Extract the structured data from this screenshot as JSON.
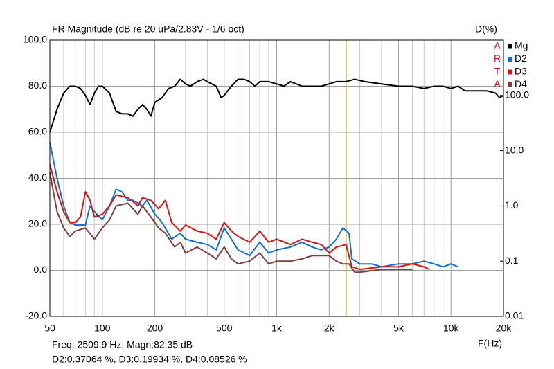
{
  "chart_data": {
    "type": "line",
    "title": "FR Magnitude (dB re 20 uPa/2.83V - 1/6 oct)",
    "y2_label": "D(%)",
    "x_label": "F(Hz)",
    "brand": [
      "A",
      "R",
      "T",
      "A"
    ],
    "brand_color": "#d01010",
    "annotations": [
      "Freq: 2509.9 Hz, Magn:82.35 dB",
      "D2:0.37064 %, D3:0.19934 %, D4:0.08526 %"
    ],
    "x_log": true,
    "y2_log": true,
    "xlim": [
      50,
      20000
    ],
    "xticks": [
      50,
      100,
      200,
      500,
      {
        "value": 1000,
        "label": "1k"
      },
      {
        "value": 2000,
        "label": "2k"
      },
      {
        "value": 5000,
        "label": "5k"
      },
      {
        "value": 10000,
        "label": "10k"
      },
      {
        "value": 20000,
        "label": "20k"
      }
    ],
    "x_minor_grid": [
      60,
      70,
      80,
      90,
      300,
      400,
      600,
      700,
      800,
      900,
      3000,
      4000,
      6000,
      7000,
      8000,
      9000
    ],
    "ylim": [
      -20,
      100
    ],
    "yticks": [
      {
        "value": -20,
        "label": "-20.0"
      },
      {
        "value": 0,
        "label": "0.0"
      },
      {
        "value": 20,
        "label": "20.0"
      },
      {
        "value": 40,
        "label": "40.0"
      },
      {
        "value": 60,
        "label": "60.0"
      },
      {
        "value": 80,
        "label": "80.0"
      },
      {
        "value": 100,
        "label": "100.0"
      }
    ],
    "y2lim": [
      0.01,
      1000
    ],
    "y2ticks": [
      0.01,
      0.1,
      {
        "value": 1,
        "label": "1.0"
      },
      {
        "value": 10,
        "label": "10.0"
      },
      {
        "value": 100,
        "label": "100.0"
      }
    ],
    "grid": true,
    "legend": "top-right",
    "cursor": {
      "x": 2509.9,
      "color": "#d4c000"
    },
    "series": [
      {
        "name": "Mg",
        "color": "#000000",
        "axis": "y",
        "x": [
          50,
          55,
          60,
          65,
          70,
          75,
          80,
          85,
          90,
          95,
          100,
          110,
          120,
          130,
          140,
          150,
          160,
          170,
          180,
          190,
          200,
          220,
          240,
          260,
          280,
          300,
          320,
          350,
          380,
          400,
          450,
          480,
          500,
          550,
          600,
          650,
          700,
          750,
          800,
          900,
          1000,
          1100,
          1200,
          1400,
          1600,
          1800,
          2000,
          2200,
          2500,
          2800,
          3200,
          4000,
          5000,
          6000,
          7000,
          8000,
          9000,
          10000,
          11000,
          12000,
          14000,
          16000,
          18000,
          19000,
          20000
        ],
        "values": [
          60,
          70,
          77,
          80,
          80,
          79,
          76,
          72,
          77,
          80,
          80,
          77,
          69,
          68,
          68,
          67,
          70,
          72,
          70,
          67,
          73,
          75,
          79,
          80,
          83,
          81,
          80,
          82,
          83,
          82,
          80,
          75,
          76,
          80,
          83,
          83,
          82,
          80,
          82,
          82,
          81,
          80,
          82,
          80,
          80,
          80,
          81,
          82,
          82,
          83,
          82,
          81,
          80,
          80,
          79,
          80,
          80,
          79,
          80,
          78,
          78,
          78,
          77,
          75,
          76
        ]
      },
      {
        "name": "D2",
        "color": "#1070d0",
        "axis": "y2",
        "x": [
          50,
          55,
          60,
          65,
          70,
          80,
          85,
          90,
          100,
          110,
          120,
          130,
          140,
          150,
          170,
          180,
          200,
          220,
          250,
          280,
          300,
          350,
          400,
          450,
          500,
          550,
          600,
          700,
          800,
          900,
          1000,
          1200,
          1400,
          1600,
          1800,
          2000,
          2200,
          2400,
          2600,
          2700,
          3000,
          3500,
          4000,
          5000,
          6000,
          7000,
          8000,
          9000,
          10000,
          11000
        ],
        "values": [
          14.1,
          3.16,
          1.0,
          0.5,
          0.45,
          0.45,
          1.0,
          0.79,
          0.56,
          1.0,
          2.0,
          1.78,
          1.26,
          1.26,
          1.0,
          1.26,
          0.71,
          0.5,
          0.25,
          0.32,
          0.25,
          0.22,
          0.2,
          0.16,
          0.4,
          0.25,
          0.16,
          0.126,
          0.22,
          0.14,
          0.16,
          0.18,
          0.22,
          0.18,
          0.16,
          0.18,
          0.25,
          0.4,
          0.32,
          0.11,
          0.089,
          0.089,
          0.079,
          0.089,
          0.089,
          0.1,
          0.089,
          0.079,
          0.089,
          0.079
        ]
      },
      {
        "name": "D3",
        "color": "#e01010",
        "axis": "y2",
        "x": [
          50,
          55,
          60,
          65,
          70,
          75,
          80,
          85,
          90,
          100,
          110,
          120,
          140,
          160,
          170,
          190,
          210,
          230,
          250,
          280,
          300,
          350,
          400,
          450,
          500,
          550,
          600,
          700,
          800,
          900,
          1000,
          1200,
          1400,
          1600,
          1800,
          2000,
          2200,
          2500,
          2700,
          3000,
          4000,
          5000,
          6000,
          7000,
          7500
        ],
        "values": [
          5.6,
          1.8,
          0.79,
          0.5,
          0.5,
          0.63,
          1.8,
          1.26,
          0.63,
          0.71,
          1.0,
          1.58,
          1.41,
          1.0,
          1.41,
          1.26,
          0.89,
          1.26,
          0.5,
          0.35,
          0.45,
          0.35,
          0.32,
          0.25,
          0.5,
          0.35,
          0.28,
          0.22,
          0.35,
          0.22,
          0.25,
          0.2,
          0.25,
          0.22,
          0.2,
          0.14,
          0.18,
          0.2,
          0.079,
          0.071,
          0.079,
          0.079,
          0.089,
          0.079,
          0.071
        ]
      },
      {
        "name": "D4",
        "color": "#804040",
        "axis": "y2",
        "x": [
          50,
          55,
          60,
          65,
          70,
          80,
          90,
          100,
          110,
          120,
          140,
          160,
          170,
          190,
          210,
          230,
          260,
          280,
          300,
          350,
          400,
          450,
          500,
          550,
          600,
          700,
          800,
          900,
          1000,
          1200,
          1400,
          1600,
          2000,
          2200,
          2400,
          2600,
          2800,
          3000,
          4000,
          5000,
          6000
        ],
        "values": [
          4.0,
          0.79,
          0.4,
          0.28,
          0.35,
          0.4,
          0.25,
          0.4,
          0.56,
          1.0,
          1.12,
          0.71,
          1.0,
          0.63,
          0.4,
          0.32,
          0.18,
          0.22,
          0.14,
          0.18,
          0.14,
          0.11,
          0.18,
          0.11,
          0.089,
          0.1,
          0.14,
          0.089,
          0.1,
          0.1,
          0.11,
          0.126,
          0.126,
          0.1,
          0.089,
          0.089,
          0.063,
          0.063,
          0.071,
          0.071,
          0.071
        ]
      }
    ]
  }
}
